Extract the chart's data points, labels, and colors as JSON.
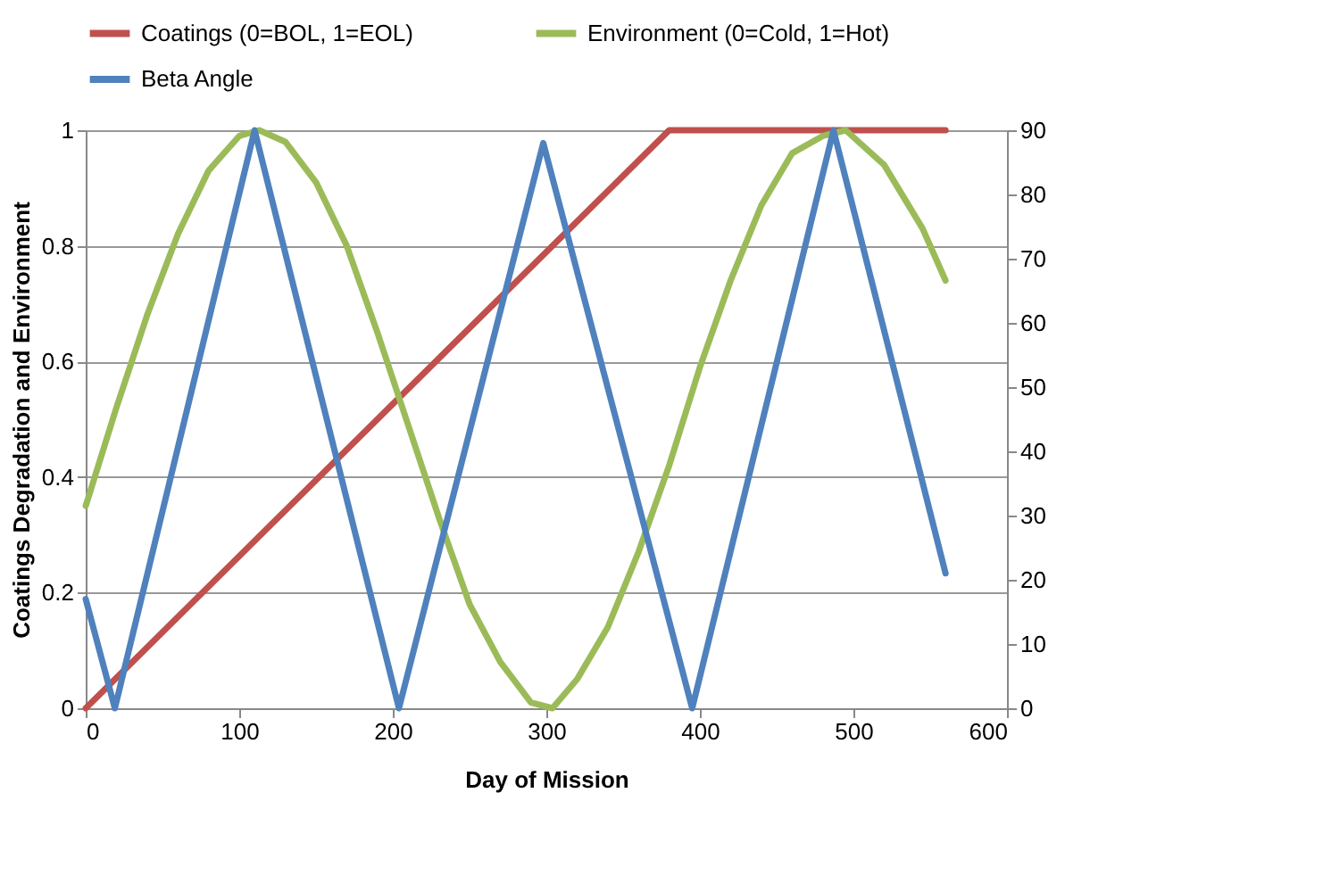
{
  "chart_data": {
    "type": "line",
    "xlabel": "Day of Mission",
    "ylabel": "Coatings Degradation and Environment",
    "legend": "top",
    "grid": "y",
    "line_style": "solid",
    "xlim": [
      0,
      600
    ],
    "xticks": [
      0,
      100,
      200,
      300,
      400,
      500,
      600
    ],
    "ylim": [
      0,
      1
    ],
    "yticks": [
      0,
      0.2,
      0.4,
      0.6,
      0.8,
      1
    ],
    "y2lim": [
      0,
      90
    ],
    "y2ticks": [
      0,
      10,
      20,
      30,
      40,
      50,
      60,
      70,
      80,
      90
    ],
    "series": [
      {
        "name": "Coatings (0=BOL, 1=EOL)",
        "color": "#c0504d",
        "x": [
          0,
          380,
          560
        ],
        "values": [
          0,
          1,
          1
        ]
      },
      {
        "name": "Environment (0=Cold, 1=Hot)",
        "color": "#9bbb59",
        "x": [
          0,
          20,
          40,
          60,
          80,
          100,
          113,
          130,
          150,
          170,
          190,
          210,
          230,
          250,
          270,
          290,
          304,
          320,
          340,
          360,
          380,
          400,
          420,
          440,
          460,
          480,
          495,
          520,
          545,
          560
        ],
        "values": [
          0.35,
          0.52,
          0.68,
          0.82,
          0.93,
          0.99,
          1,
          0.98,
          0.91,
          0.8,
          0.65,
          0.49,
          0.33,
          0.18,
          0.08,
          0.01,
          0,
          0.05,
          0.14,
          0.27,
          0.42,
          0.59,
          0.74,
          0.87,
          0.96,
          0.99,
          1,
          0.94,
          0.83,
          0.74
        ]
      },
      {
        "name": "Beta Angle",
        "color": "#4f81bd",
        "axis": "y2",
        "x": [
          0,
          19,
          110,
          204,
          298,
          395,
          487,
          560
        ],
        "values": [
          17,
          0,
          90,
          0,
          88,
          0,
          90,
          21
        ]
      }
    ]
  }
}
